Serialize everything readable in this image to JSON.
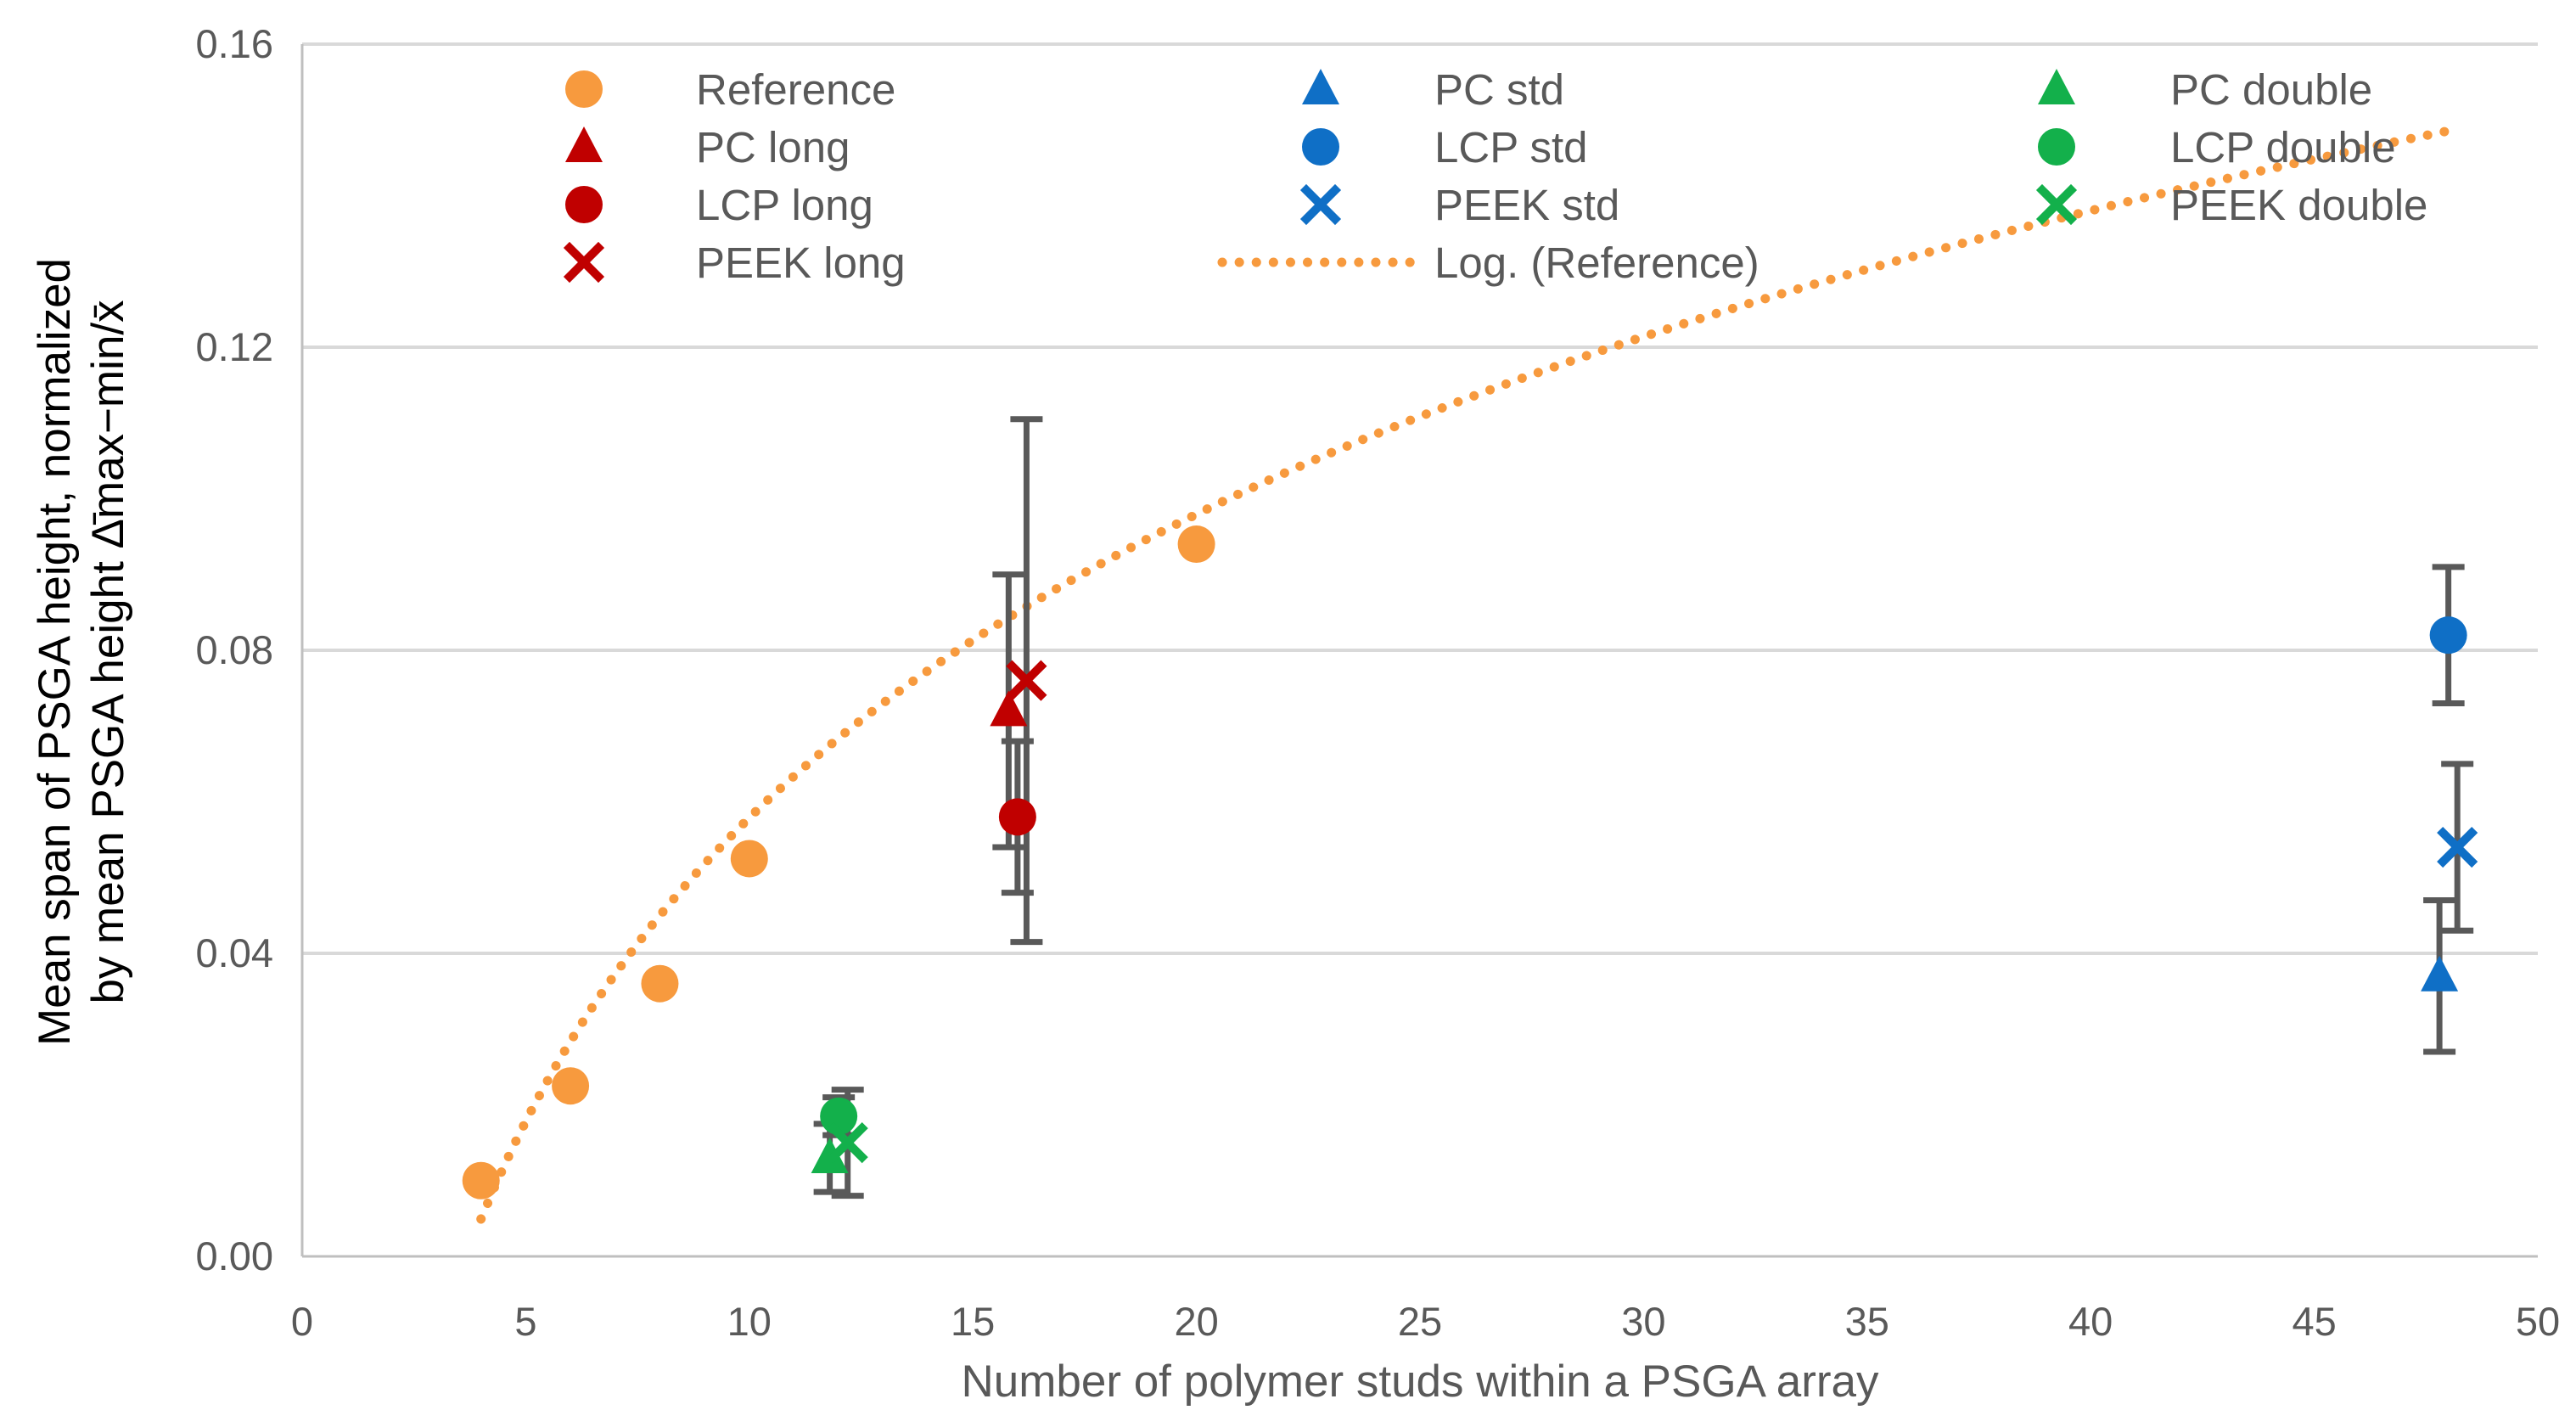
{
  "chart_data": {
    "type": "scatter",
    "xlabel": "Number of polymer studs within a PSGA array",
    "ylabel_line1": "Mean span of PSGA height, normalized",
    "ylabel_line2": "by mean PSGA height Δ̄max−min/x̄",
    "xlim": [
      0,
      50
    ],
    "ylim": [
      0,
      0.16
    ],
    "xticks": [
      0,
      5,
      10,
      15,
      20,
      25,
      30,
      35,
      40,
      45,
      50
    ],
    "yticks": [
      0.0,
      0.04,
      0.08,
      0.12,
      0.16
    ],
    "ytick_labels": [
      "0.00",
      "0.04",
      "0.08",
      "0.12",
      "0.16"
    ],
    "grid": "horizontal",
    "legend_position": "top",
    "colors": {
      "orange": "#F79A3E",
      "red": "#C00000",
      "blue": "#0F6FC6",
      "green": "#13B04B",
      "errorbar": "#595959",
      "grid": "#D9D9D9"
    },
    "series": [
      {
        "name": "Reference",
        "color": "#F79A3E",
        "marker": "circle",
        "x": [
          4,
          6,
          8,
          10,
          20
        ],
        "y": [
          0.01,
          0.0225,
          0.036,
          0.0525,
          0.094
        ],
        "err": [
          null,
          null,
          null,
          null,
          null
        ]
      },
      {
        "name": "PC long",
        "color": "#C00000",
        "marker": "triangle",
        "x": [
          15.8
        ],
        "y": [
          0.072
        ],
        "err": [
          0.018
        ]
      },
      {
        "name": "LCP long",
        "color": "#C00000",
        "marker": "circle",
        "x": [
          16
        ],
        "y": [
          0.058
        ],
        "err": [
          0.01
        ]
      },
      {
        "name": "PEEK long",
        "color": "#C00000",
        "marker": "x",
        "x": [
          16.2
        ],
        "y": [
          0.076
        ],
        "err": [
          0.0345
        ]
      },
      {
        "name": "PC  std",
        "color": "#0F6FC6",
        "marker": "triangle",
        "x": [
          47.8
        ],
        "y": [
          0.037
        ],
        "err": [
          0.01
        ]
      },
      {
        "name": "LCP std",
        "color": "#0F6FC6",
        "marker": "circle",
        "x": [
          48
        ],
        "y": [
          0.082
        ],
        "err": [
          0.009
        ]
      },
      {
        "name": "PEEK std",
        "color": "#0F6FC6",
        "marker": "x",
        "x": [
          48.2
        ],
        "y": [
          0.054
        ],
        "err": [
          0.011
        ]
      },
      {
        "name": "PC  double",
        "color": "#13B04B",
        "marker": "triangle",
        "x": [
          11.8
        ],
        "y": [
          0.013
        ],
        "err": [
          0.0045
        ]
      },
      {
        "name": "LCP double",
        "color": "#13B04B",
        "marker": "circle",
        "x": [
          12
        ],
        "y": [
          0.0185
        ],
        "err": [
          0.0025
        ]
      },
      {
        "name": "PEEK double",
        "color": "#13B04B",
        "marker": "x",
        "x": [
          12.2
        ],
        "y": [
          0.015
        ],
        "err": [
          0.007
        ]
      }
    ],
    "trendline": {
      "name": "Log. (Reference)",
      "type": "logarithmic",
      "color": "#F79A3E",
      "a": 0.0578,
      "b": -0.0752,
      "x_range": [
        4,
        48
      ]
    },
    "legend": [
      {
        "label": "Reference",
        "marker": "circle",
        "color": "#F79A3E"
      },
      {
        "label": "PC long",
        "marker": "triangle",
        "color": "#C00000"
      },
      {
        "label": "LCP long",
        "marker": "circle",
        "color": "#C00000"
      },
      {
        "label": "PEEK long",
        "marker": "x",
        "color": "#C00000"
      },
      {
        "label": "PC  std",
        "marker": "triangle",
        "color": "#0F6FC6"
      },
      {
        "label": "LCP std",
        "marker": "circle",
        "color": "#0F6FC6"
      },
      {
        "label": "PEEK std",
        "marker": "x",
        "color": "#0F6FC6"
      },
      {
        "label": "Log. (Reference)",
        "marker": "dotted-line",
        "color": "#F79A3E"
      },
      {
        "label": "PC  double",
        "marker": "triangle",
        "color": "#13B04B"
      },
      {
        "label": "LCP double",
        "marker": "circle",
        "color": "#13B04B"
      },
      {
        "label": "PEEK double",
        "marker": "x",
        "color": "#13B04B"
      }
    ]
  }
}
